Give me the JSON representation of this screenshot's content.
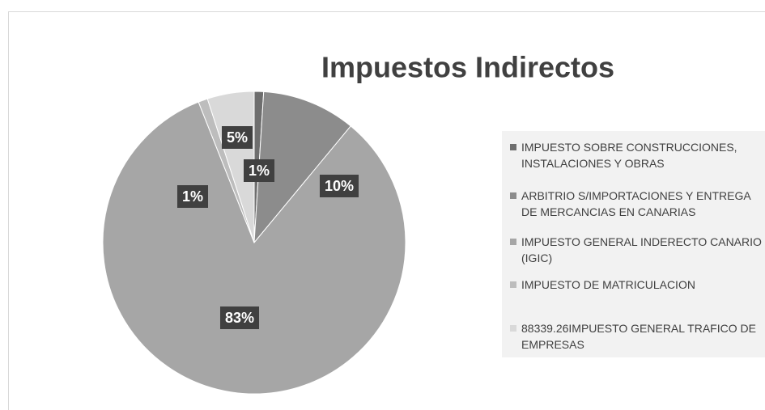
{
  "chart_data": {
    "type": "pie",
    "title": "Impuestos Indirectos",
    "categories": [
      "IMPUESTO SOBRE CONSTRUCCIONES, INSTALACIONES Y OBRAS",
      "ARBITRIO S/IMPORTACIONES Y ENTREGA DE MERCANCIAS EN CANARIAS",
      "IMPUESTO GENERAL INDERECTO CANARIO (IGIC)",
      "IMPUESTO DE MATRICULACION",
      "88339.26IMPUESTO GENERAL TRAFICO DE EMPRESAS"
    ],
    "values": [
      1,
      10,
      83,
      1,
      5
    ],
    "value_labels": [
      "1%",
      "10%",
      "83%",
      "1%",
      "5%"
    ],
    "colors": [
      "#6e6e6e",
      "#8c8c8c",
      "#a6a6a6",
      "#bdbdbd",
      "#d9d9d9"
    ],
    "legend": "right"
  }
}
